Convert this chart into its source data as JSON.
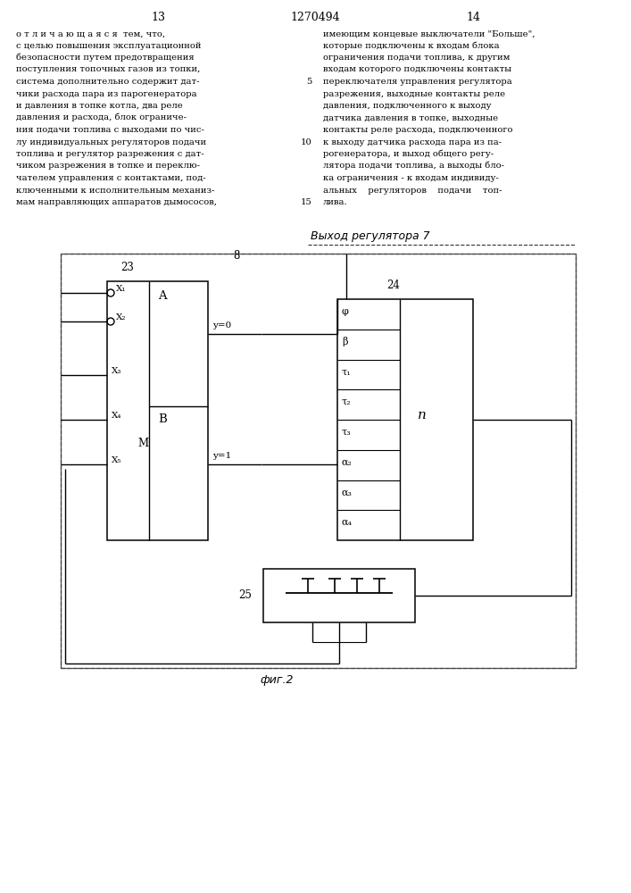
{
  "title_text": "Выход регулятора 7",
  "fig_label": "фиг.2",
  "page_left": "13",
  "page_right": "14",
  "patent_num": "1270494",
  "text_left_lines": [
    "о т л и ч а ю щ а я с я  тем, что,",
    "с целью повышения эксплуатационной",
    "безопасности путем предотвращения",
    "поступления топочных газов из топки,",
    "система дополнительно содержит дат-",
    "чики расхода пара из парогенератора",
    "и давления в топке котла, два реле",
    "давления и расхода, блок ограниче-",
    "ния подачи топлива с выходами по чис-",
    "лу индивидуальных регуляторов подачи",
    "топлива и регулятор разрежения с дат-",
    "чиком разрежения в топке и переклю-",
    "чателем управления с контактами, под-",
    "ключенными к исполнительным механиз-",
    "мам направляющих аппаратов дымососов,"
  ],
  "text_right_lines": [
    "имеющим концевые выключатели \"Больше\",",
    "которые подключены к входам блока",
    "ограничения подачи топлива, к другим",
    "входам которого подключены контакты",
    "переключателя управления регулятора",
    "разрежения, выходные контакты реле",
    "давления, подключенного к выходу",
    "датчика давления в топке, выходные",
    "контакты реле расхода, подключенного",
    "к выходу датчика расхода пара из па-",
    "рогенератора, и выход общего регу-",
    "лятора подачи топлива, а выходы бло-",
    "ка ограничения - к входам индивиду-",
    "альных    регуляторов    подачи    топ-",
    "лива."
  ],
  "line_num_indices": [
    4,
    9,
    14
  ],
  "line_num_values": [
    "5",
    "10",
    "15"
  ],
  "bg_color": "#ffffff",
  "fg_color": "#000000",
  "b23_label": "23",
  "b24_label": "24",
  "b25_label": "25",
  "label_8": "8",
  "label_A": "A",
  "label_B": "B",
  "label_M": "M",
  "label_pi": "п",
  "inputs": [
    "X₁",
    "X₂",
    "X₃",
    "X₄",
    "X₅"
  ],
  "rows": [
    "φ",
    "β",
    "τ₁",
    "τ₂",
    "τ₃",
    "α₂",
    "α₃",
    "α₄"
  ],
  "y0_label": "y=0",
  "y1_label": "y=1"
}
